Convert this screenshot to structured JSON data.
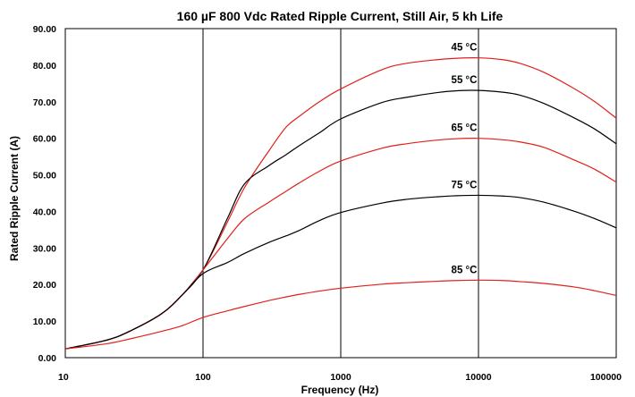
{
  "chart_data": {
    "type": "line",
    "title": "160 µF 800 Vdc Rated Ripple Current, Still Air, 5 kh Life",
    "xlabel": "Frequency (Hz)",
    "ylabel": "Rated Ripple Current (A)",
    "x_scale": "log",
    "xlim": [
      10,
      100000
    ],
    "ylim": [
      0,
      90
    ],
    "x_ticks": [
      "10",
      "100",
      "1000",
      "10000",
      "100000"
    ],
    "y_ticks": [
      "0.00",
      "10.00",
      "20.00",
      "30.00",
      "40.00",
      "50.00",
      "60.00",
      "70.00",
      "80.00",
      "90.00"
    ],
    "grid": "vertical lines at decades",
    "series": [
      {
        "name": "45 °C",
        "color": "#e0201b",
        "x": [
          10,
          20,
          30,
          50,
          70,
          100,
          150,
          200,
          300,
          400,
          500,
          700,
          1000,
          2000,
          3000,
          5000,
          7000,
          10000,
          15000,
          20000,
          30000,
          50000,
          70000,
          100000
        ],
        "y": [
          2.4,
          4.8,
          7.4,
          12.0,
          17.0,
          24.0,
          37.0,
          46.5,
          56.5,
          63.0,
          66.0,
          70.0,
          73.5,
          78.8,
          80.5,
          81.5,
          81.9,
          82.0,
          81.5,
          80.5,
          78.0,
          73.5,
          70.0,
          65.5
        ]
      },
      {
        "name": "55 °C",
        "color": "#000000",
        "x": [
          10,
          20,
          30,
          50,
          70,
          100,
          150,
          200,
          300,
          400,
          500,
          700,
          1000,
          2000,
          3000,
          5000,
          7000,
          10000,
          15000,
          20000,
          30000,
          50000,
          70000,
          100000
        ],
        "y": [
          2.4,
          4.8,
          7.4,
          12.0,
          17.0,
          24.0,
          38.0,
          47.5,
          52.5,
          55.5,
          58.0,
          61.5,
          65.3,
          69.8,
          71.2,
          72.5,
          73.0,
          73.1,
          72.6,
          71.8,
          69.5,
          65.5,
          62.5,
          58.5
        ]
      },
      {
        "name": "65 °C",
        "color": "#e0201b",
        "x": [
          10,
          20,
          30,
          50,
          70,
          100,
          150,
          200,
          300,
          400,
          500,
          700,
          1000,
          2000,
          3000,
          5000,
          7000,
          10000,
          15000,
          20000,
          30000,
          50000,
          70000,
          100000
        ],
        "y": [
          2.4,
          4.8,
          7.4,
          12.0,
          17.0,
          24.0,
          32.5,
          38.0,
          42.5,
          45.5,
          47.8,
          51.0,
          53.8,
          57.3,
          58.5,
          59.5,
          59.9,
          60.0,
          59.6,
          59.0,
          57.5,
          54.0,
          51.5,
          48.0
        ]
      },
      {
        "name": "75 °C",
        "color": "#000000",
        "x": [
          10,
          20,
          30,
          50,
          70,
          100,
          150,
          200,
          300,
          400,
          500,
          700,
          1000,
          2000,
          3000,
          5000,
          7000,
          10000,
          15000,
          20000,
          30000,
          50000,
          70000,
          100000
        ],
        "y": [
          2.4,
          4.8,
          7.4,
          12.0,
          17.0,
          23.0,
          26.0,
          28.5,
          31.5,
          33.3,
          34.8,
          37.5,
          39.7,
          42.3,
          43.3,
          44.0,
          44.3,
          44.4,
          44.2,
          43.8,
          42.5,
          40.0,
          38.0,
          35.5
        ]
      },
      {
        "name": "85 °C",
        "color": "#e0201b",
        "x": [
          10,
          20,
          30,
          50,
          70,
          100,
          150,
          200,
          300,
          400,
          500,
          700,
          1000,
          2000,
          3000,
          5000,
          7000,
          10000,
          15000,
          20000,
          30000,
          50000,
          70000,
          100000
        ],
        "y": [
          2.4,
          3.8,
          5.2,
          7.2,
          8.7,
          11.0,
          12.8,
          14.0,
          15.6,
          16.6,
          17.3,
          18.2,
          19.0,
          20.1,
          20.5,
          20.9,
          21.1,
          21.2,
          21.1,
          20.8,
          20.3,
          19.3,
          18.3,
          17.0
        ]
      }
    ]
  }
}
